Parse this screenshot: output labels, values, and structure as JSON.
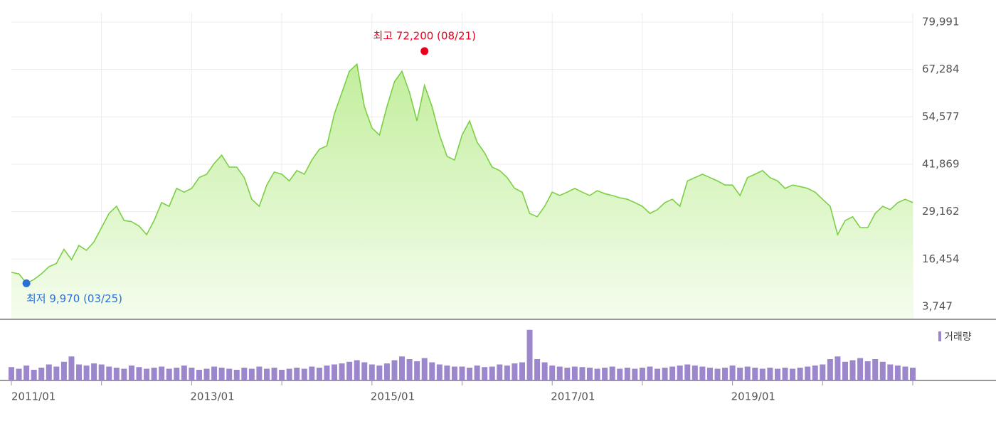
{
  "chart_data": [
    {
      "type": "area",
      "color": "#7ccf45",
      "x": [
        "2011/01",
        "2011/02",
        "2011/03",
        "2011/04",
        "2011/05",
        "2011/06",
        "2011/07",
        "2011/08",
        "2011/09",
        "2011/10",
        "2011/11",
        "2011/12",
        "2012/01",
        "2012/02",
        "2012/03",
        "2012/04",
        "2012/05",
        "2012/06",
        "2012/07",
        "2012/08",
        "2012/09",
        "2012/10",
        "2012/11",
        "2012/12",
        "2013/01",
        "2013/02",
        "2013/03",
        "2013/04",
        "2013/05",
        "2013/06",
        "2013/07",
        "2013/08",
        "2013/09",
        "2013/10",
        "2013/11",
        "2013/12",
        "2014/01",
        "2014/02",
        "2014/03",
        "2014/04",
        "2014/05",
        "2014/06",
        "2014/07",
        "2014/08",
        "2014/09",
        "2014/10",
        "2014/11",
        "2014/12",
        "2015/01",
        "2015/02",
        "2015/03",
        "2015/04",
        "2015/05",
        "2015/06",
        "2015/07",
        "2015/08",
        "2015/09",
        "2015/10",
        "2015/11",
        "2015/12",
        "2016/01",
        "2016/02",
        "2016/03",
        "2016/04",
        "2016/05",
        "2016/06",
        "2016/07",
        "2016/08",
        "2016/09",
        "2016/10",
        "2016/11",
        "2016/12",
        "2017/01",
        "2017/02",
        "2017/03",
        "2017/04",
        "2017/05",
        "2017/06",
        "2017/07",
        "2017/08",
        "2017/09",
        "2017/10",
        "2017/11",
        "2017/12",
        "2018/01",
        "2018/02",
        "2018/03",
        "2018/04",
        "2018/05",
        "2018/06",
        "2018/07",
        "2018/08",
        "2018/09",
        "2018/10",
        "2018/11",
        "2018/12",
        "2019/01",
        "2019/02",
        "2019/03",
        "2019/04",
        "2019/05",
        "2019/06",
        "2019/07",
        "2019/08",
        "2019/09",
        "2019/10",
        "2019/11",
        "2019/12",
        "2020/01",
        "2020/02",
        "2020/03",
        "2020/04",
        "2020/05",
        "2020/06",
        "2020/07",
        "2020/08",
        "2020/09",
        "2020/10",
        "2020/11",
        "2020/12",
        "2021/01"
      ],
      "values": [
        12900,
        12500,
        9970,
        11000,
        12500,
        14400,
        15300,
        19100,
        16300,
        20100,
        18800,
        21100,
        24900,
        28700,
        30600,
        26800,
        26500,
        25300,
        23000,
        26800,
        31600,
        30600,
        35400,
        34400,
        35400,
        38300,
        39200,
        42100,
        44300,
        41100,
        41100,
        38300,
        32500,
        30600,
        36300,
        39800,
        39200,
        37400,
        40200,
        39200,
        43000,
        45900,
        46800,
        55400,
        61100,
        66800,
        68700,
        57300,
        51600,
        49700,
        57300,
        64000,
        66800,
        61100,
        53500,
        63000,
        57300,
        49700,
        44000,
        43000,
        49700,
        53500,
        47800,
        44900,
        41100,
        40200,
        38300,
        35400,
        34400,
        28700,
        27800,
        30600,
        34400,
        33500,
        34400,
        35400,
        34400,
        33500,
        34800,
        34000,
        33500,
        32900,
        32500,
        31600,
        30600,
        28700,
        29700,
        31600,
        32500,
        30600,
        37400,
        38300,
        39200,
        38300,
        37400,
        36300,
        36300,
        33500,
        38300,
        39200,
        40200,
        38300,
        37400,
        35400,
        36300,
        35900,
        35400,
        34400,
        32500,
        30600,
        23000,
        26800,
        27800,
        24900,
        24900,
        28700,
        30600,
        29700,
        31600,
        32500,
        31600
      ],
      "ylim": [
        507,
        79991
      ],
      "yticks": [
        {
          "value": 3747,
          "label": "3,747"
        },
        {
          "value": 16454,
          "label": "16,454"
        },
        {
          "value": 29162,
          "label": "29,162"
        },
        {
          "value": 41869,
          "label": "41,869"
        },
        {
          "value": 54577,
          "label": "54,577"
        },
        {
          "value": 67284,
          "label": "67,284"
        },
        {
          "value": 79991,
          "label": "79,991"
        }
      ],
      "xticks": [
        "2011/01",
        "2013/01",
        "2015/01",
        "2017/01",
        "2019/01"
      ],
      "grid": true,
      "annotations": [
        {
          "text": "최고 72,200 (08/21)",
          "x": "2015/08",
          "value": 72200,
          "color": "#e8001c"
        },
        {
          "text": "최저 9,970 (03/25)",
          "x": "2011/03",
          "value": 9970,
          "color": "#2a6fd6"
        }
      ]
    },
    {
      "type": "bar",
      "ylim": [
        0,
        100
      ],
      "series": [
        {
          "name": "거래량",
          "color": "#9c87cc",
          "values": [
            25,
            22,
            28,
            20,
            24,
            30,
            26,
            35,
            45,
            30,
            28,
            32,
            30,
            26,
            24,
            22,
            28,
            25,
            22,
            24,
            26,
            22,
            24,
            28,
            24,
            20,
            22,
            26,
            24,
            22,
            20,
            24,
            22,
            26,
            22,
            24,
            20,
            22,
            24,
            22,
            26,
            24,
            28,
            30,
            32,
            35,
            38,
            34,
            30,
            28,
            32,
            38,
            45,
            40,
            36,
            42,
            34,
            30,
            28,
            26,
            26,
            24,
            28,
            25,
            26,
            30,
            28,
            32,
            34,
            95,
            40,
            34,
            28,
            26,
            24,
            26,
            25,
            24,
            22,
            24,
            26,
            22,
            24,
            22,
            24,
            26,
            22,
            24,
            26,
            28,
            30,
            28,
            26,
            24,
            22,
            24,
            28,
            24,
            26,
            24,
            22,
            24,
            22,
            24,
            22,
            24,
            26,
            28,
            30,
            40,
            45,
            35,
            38,
            42,
            36,
            40,
            35,
            30,
            28,
            26,
            24
          ]
        }
      ]
    }
  ]
}
